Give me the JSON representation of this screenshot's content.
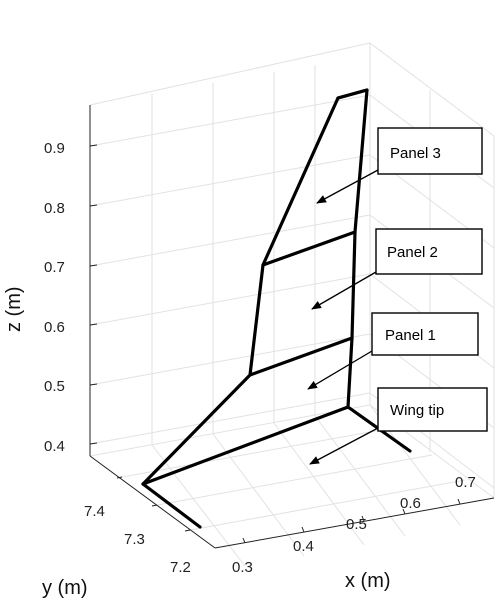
{
  "axes": {
    "z": {
      "title": "z (m)",
      "ticks": [
        "0.4",
        "0.5",
        "0.6",
        "0.7",
        "0.8",
        "0.9"
      ]
    },
    "y": {
      "title": "y (m)",
      "ticks": [
        "7.2",
        "7.3",
        "7.4"
      ]
    },
    "x": {
      "title": "x (m)",
      "ticks": [
        "0.3",
        "0.4",
        "0.5",
        "0.6",
        "0.7"
      ]
    }
  },
  "callouts": [
    {
      "id": "panel-3",
      "label": "Panel 3"
    },
    {
      "id": "panel-2",
      "label": "Panel 2"
    },
    {
      "id": "panel-1",
      "label": "Panel 1"
    },
    {
      "id": "wing-tip",
      "label": "Wing tip"
    }
  ],
  "colors": {
    "structure": "#000000",
    "grid": "#e2e2e2",
    "axis": "#222222",
    "callout_border": "#000000",
    "callout_fill": "#ffffff"
  }
}
